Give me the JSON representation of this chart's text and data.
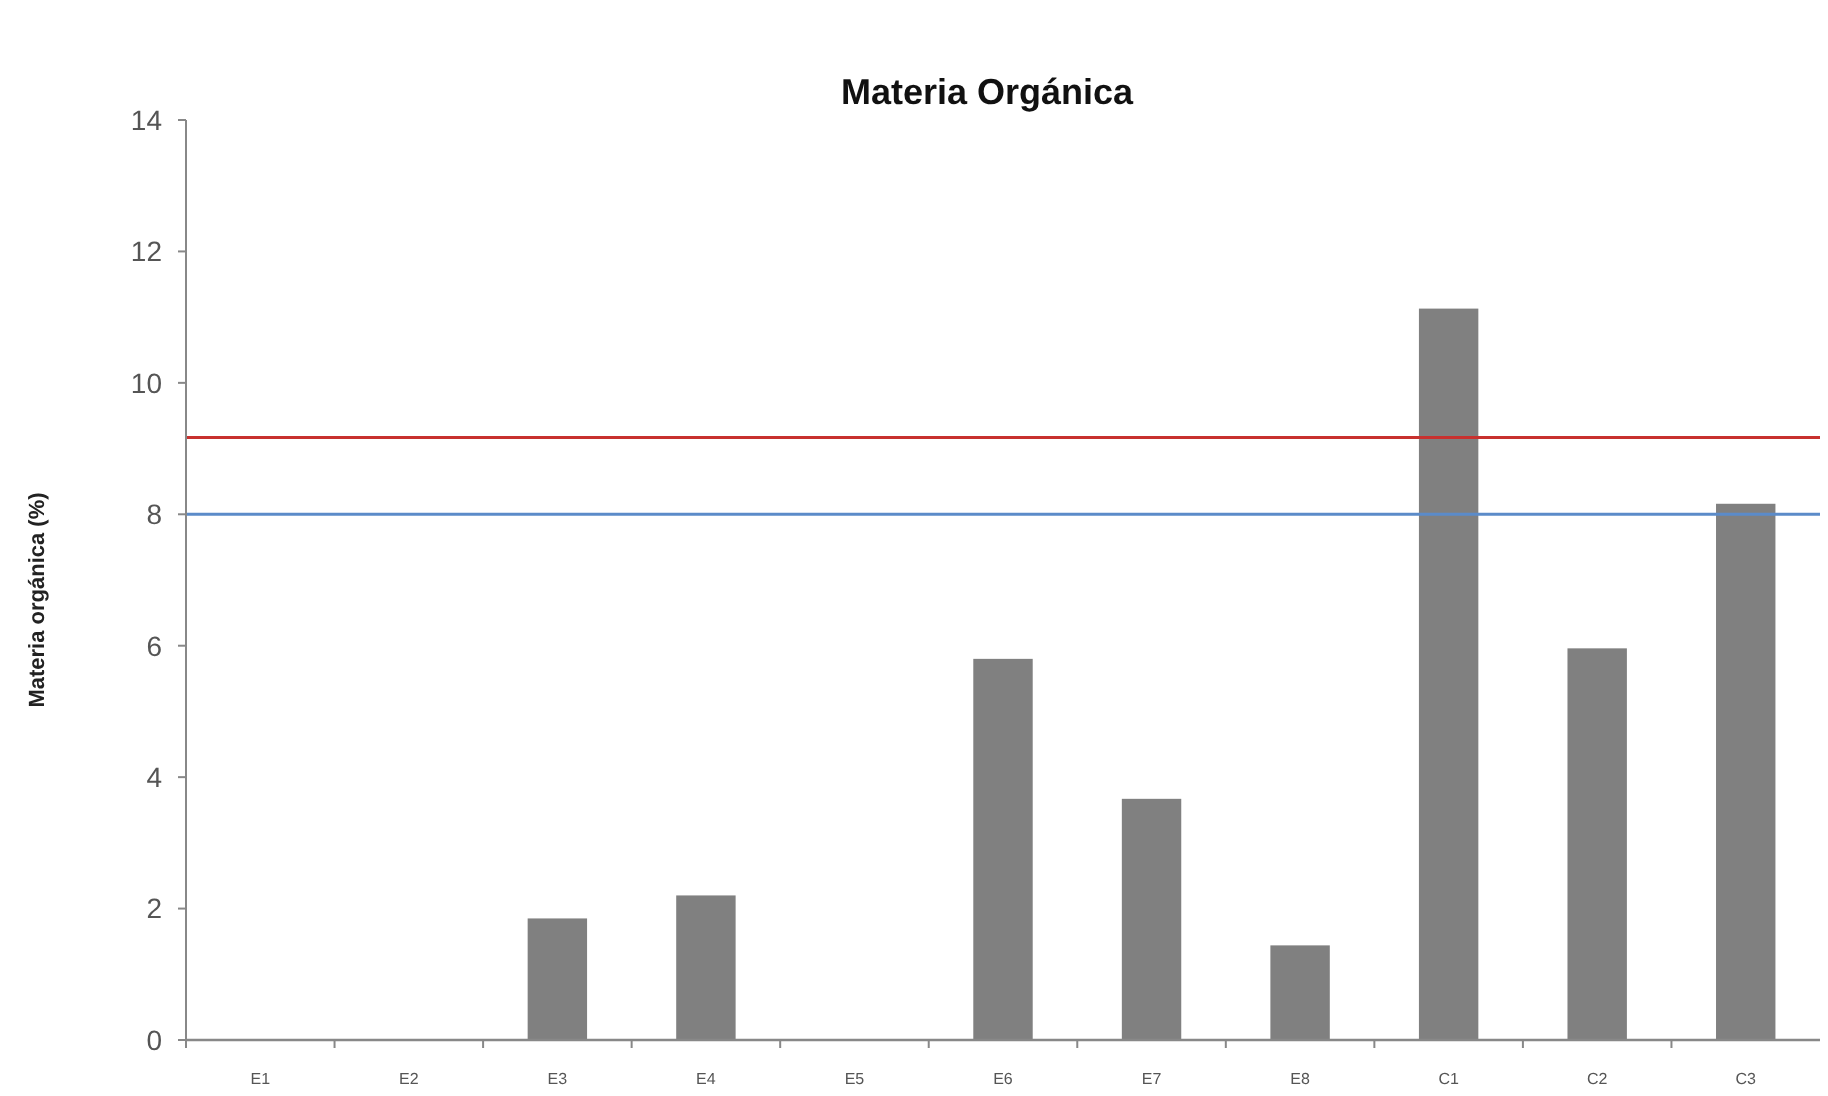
{
  "chart_data": {
    "type": "bar",
    "title": "Materia Orgánica",
    "ylabel": "Materia orgánica (%)",
    "categories": [
      "E1",
      "E2",
      "E3",
      "E4",
      "E5",
      "E6",
      "E7",
      "E8",
      "C1",
      "C2",
      "C3"
    ],
    "values": [
      0,
      0,
      1.85,
      2.2,
      0,
      5.8,
      3.67,
      1.44,
      11.13,
      5.96,
      8.16
    ],
    "color": "#808080",
    "ylim": [
      0,
      14
    ],
    "yticks": [
      0,
      2,
      4,
      6,
      8,
      10,
      12,
      14
    ],
    "grid": false,
    "ref_lines": [
      {
        "axis": "y",
        "value": 9.17,
        "color": "#c8312f"
      },
      {
        "axis": "y",
        "value": 8,
        "color": "#5b8bc9"
      }
    ]
  }
}
